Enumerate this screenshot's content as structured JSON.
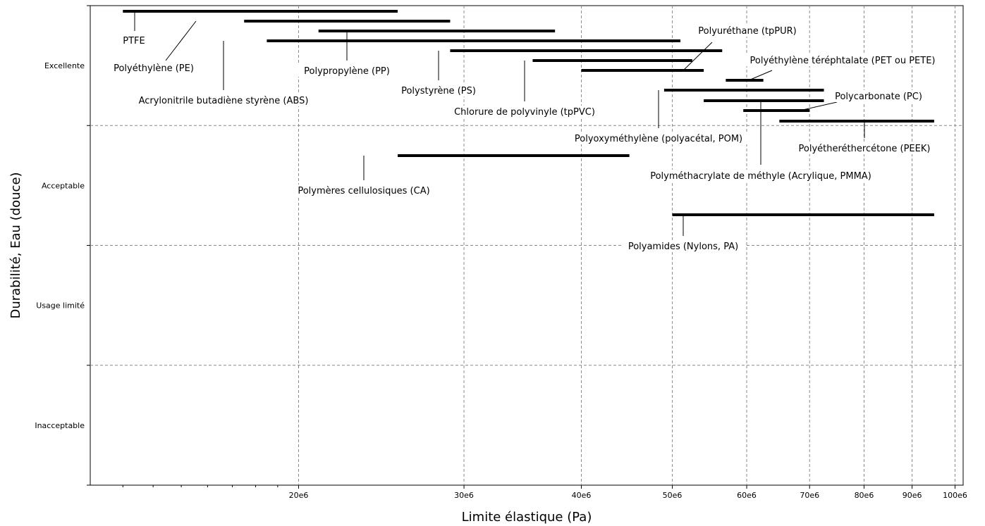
{
  "chart_data": {
    "type": "range",
    "xlabel": "Limite élastique (Pa)",
    "ylabel": "Durabilité, Eau (douce)",
    "xscale": "log",
    "xlim": [
      12000000,
      102000000
    ],
    "x_ticks": [
      {
        "value": 20000000,
        "label": "20e6"
      },
      {
        "value": 30000000,
        "label": "30e6"
      },
      {
        "value": 40000000,
        "label": "40e6"
      },
      {
        "value": 50000000,
        "label": "50e6"
      },
      {
        "value": 60000000,
        "label": "60e6"
      },
      {
        "value": 70000000,
        "label": "70e6"
      },
      {
        "value": 80000000,
        "label": "80e6"
      },
      {
        "value": 90000000,
        "label": "90e6"
      },
      {
        "value": 100000000,
        "label": "100e6"
      }
    ],
    "categories": [
      "Excellente",
      "Acceptable",
      "Usage limité",
      "Inacceptable"
    ],
    "grid": true,
    "series": [
      {
        "name": "PTFE",
        "category": "Excellente",
        "min": 13000000,
        "max": 25500000
      },
      {
        "name": "Polyéthylène (PE)",
        "category": "Excellente",
        "min": 17500000,
        "max": 29000000
      },
      {
        "name": "Polypropylène (PP)",
        "category": "Excellente",
        "min": 21000000,
        "max": 37500000
      },
      {
        "name": "Acrylonitrile butadiène styrène (ABS)",
        "category": "Excellente",
        "min": 18500000,
        "max": 51000000
      },
      {
        "name": "Polystyrène (PS)",
        "category": "Excellente",
        "min": 29000000,
        "max": 56500000
      },
      {
        "name": "Chlorure de polyvinyle (tpPVC)",
        "category": "Excellente",
        "min": 35500000,
        "max": 52500000
      },
      {
        "name": "Polyuréthane (tpPUR)",
        "category": "Excellente",
        "min": 40000000,
        "max": 54000000
      },
      {
        "name": "Polyéthylène téréphtalate (PET ou PETE)",
        "category": "Excellente",
        "min": 57000000,
        "max": 62500000
      },
      {
        "name": "Polyoxyméthylène (polyacétal, POM)",
        "category": "Excellente",
        "min": 49000000,
        "max": 72500000
      },
      {
        "name": "Polyméthacrylate de méthyle (Acrylique, PMMA)",
        "category": "Excellente",
        "min": 54000000,
        "max": 72500000
      },
      {
        "name": "Polycarbonate (PC)",
        "category": "Excellente",
        "min": 59500000,
        "max": 70000000
      },
      {
        "name": "Polyétheréthercétone (PEEK)",
        "category": "Excellente",
        "min": 65000000,
        "max": 95000000
      },
      {
        "name": "Polymères cellulosiques (CA)",
        "category": "Acceptable",
        "min": 25500000,
        "max": 45000000
      },
      {
        "name": "Polyamides (Nylons, PA)",
        "category": "Acceptable",
        "min": 50000000,
        "max": 95000000
      }
    ]
  }
}
